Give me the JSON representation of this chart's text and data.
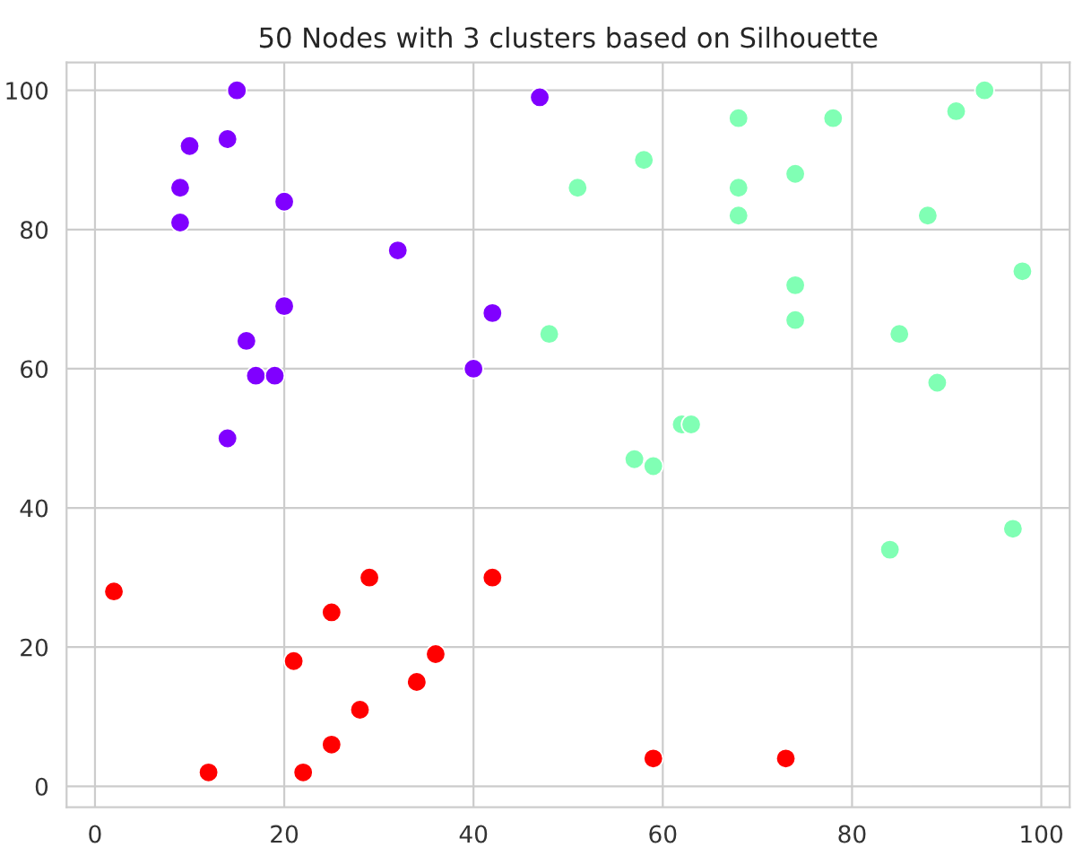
{
  "chart_data": {
    "type": "scatter",
    "title": "50 Nodes with 3 clusters based on Silhouette",
    "marker": "circle",
    "grid": true,
    "xlim": [
      -3,
      103
    ],
    "ylim": [
      -3,
      104
    ],
    "xticks": [
      0,
      20,
      40,
      60,
      80,
      100
    ],
    "yticks": [
      0,
      20,
      40,
      60,
      80,
      100
    ],
    "series": [
      {
        "color": "#8000ff",
        "x": [
          15,
          47,
          10,
          14,
          9,
          9,
          20,
          32,
          20,
          42,
          16,
          17,
          19,
          40,
          14
        ],
        "values": [
          100,
          99,
          92,
          93,
          86,
          81,
          84,
          77,
          69,
          68,
          64,
          59,
          59,
          60,
          50
        ]
      },
      {
        "color": "#80ffb4",
        "x": [
          51,
          58,
          68,
          78,
          68,
          68,
          74,
          74,
          74,
          48,
          57,
          59,
          62,
          63,
          84,
          85,
          89,
          88,
          91,
          94,
          98,
          97
        ],
        "values": [
          86,
          90,
          96,
          96,
          86,
          82,
          88,
          72,
          67,
          65,
          47,
          46,
          52,
          52,
          34,
          65,
          58,
          82,
          97,
          100,
          74,
          37
        ]
      },
      {
        "color": "#ff0000",
        "x": [
          2,
          12,
          22,
          21,
          25,
          29,
          42,
          25,
          28,
          34,
          36,
          59,
          73
        ],
        "values": [
          28,
          2,
          2,
          18,
          25,
          30,
          30,
          6,
          11,
          15,
          19,
          4,
          4
        ]
      }
    ]
  }
}
